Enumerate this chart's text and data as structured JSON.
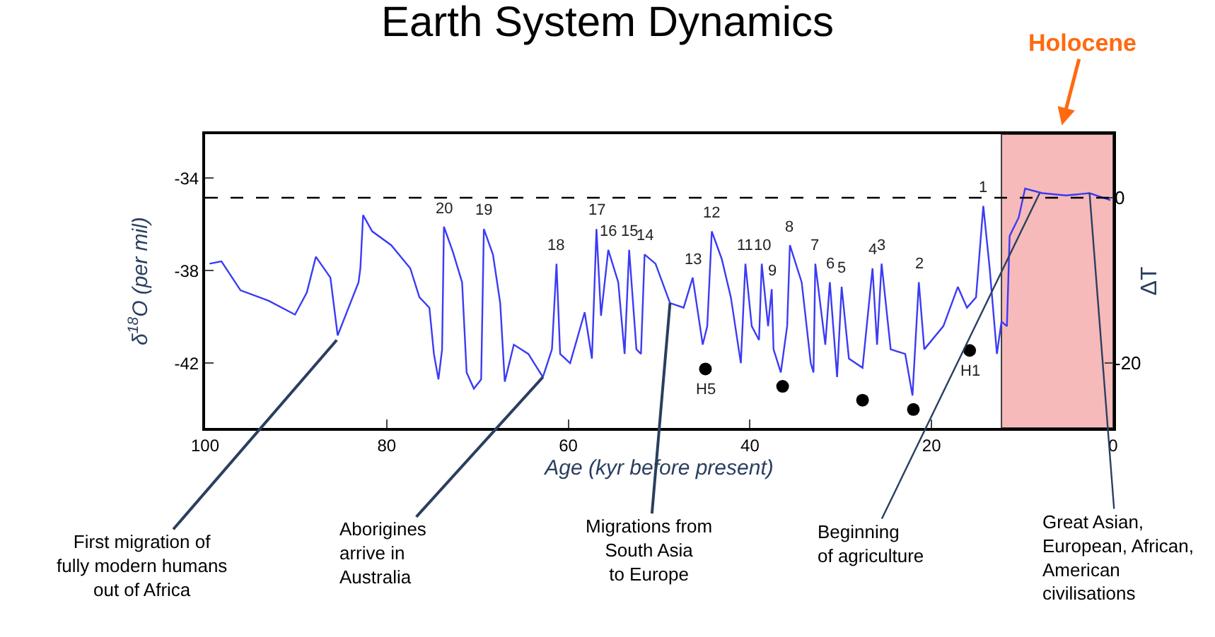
{
  "chart_data": {
    "type": "line",
    "title": "Earth System Dynamics",
    "xlabel": "Age (kyr before present)",
    "ylabel": "δ$^{18}$O (per mil)",
    "y2label": "ΔT",
    "xlim": [
      100,
      0
    ],
    "xticks": [
      100,
      80,
      60,
      40,
      20,
      0
    ],
    "ylim": [
      -44.8,
      -32.1
    ],
    "yticks": [
      -34,
      -38,
      -42
    ],
    "y2lim": [
      -27.9,
      7.7
    ],
    "y2ticks": [
      0,
      -20
    ],
    "grid": false,
    "legend": false,
    "series": [
      {
        "color": "#3b3bf5",
        "marker": "none",
        "x": [
          99.5,
          98.2,
          96.1,
          93,
          90.1,
          88.8,
          87.8,
          86.2,
          85.4,
          84.2,
          83.1,
          82.9,
          82.6,
          81.6,
          79.5,
          77.4,
          76.4,
          75.3,
          74.8,
          74.3,
          73.9,
          73.7,
          72.7,
          71.7,
          71.2,
          70.4,
          69.6,
          69.3,
          68.3,
          67.5,
          67.0,
          66.0,
          64.4,
          62.8,
          61.8,
          61.3,
          60.9,
          59.8,
          58.2,
          57.4,
          56.9,
          56.4,
          55.6,
          54.5,
          53.8,
          53.3,
          52.5,
          52.0,
          51.6,
          50.4,
          48.8,
          47.3,
          46.3,
          45.2,
          44.7,
          44.2,
          43.1,
          42.1,
          41.0,
          40.5,
          39.8,
          39.0,
          38.7,
          38.0,
          37.6,
          37.4,
          36.6,
          35.9,
          35.6,
          34.3,
          33.3,
          33.0,
          32.8,
          31.7,
          31.2,
          30.4,
          29.9,
          29.1,
          27.6,
          26.5,
          26.0,
          25.5,
          24.5,
          22.9,
          22.1,
          21.4,
          20.8,
          18.7,
          17.1,
          16.1,
          15.1,
          14.3,
          13.6,
          12.8,
          12.3,
          11.7,
          11.4,
          10.4,
          9.7,
          7.8,
          5.2,
          2.6,
          0.3
        ],
        "values": [
          -37.7,
          -37.6,
          -38.85,
          -39.3,
          -39.9,
          -38.95,
          -37.4,
          -38.3,
          -40.8,
          -39.6,
          -38.5,
          -37.9,
          -35.6,
          -36.3,
          -36.9,
          -37.9,
          -39.15,
          -39.6,
          -41.6,
          -42.7,
          -41.4,
          -36.1,
          -37.2,
          -38.5,
          -42.4,
          -43.1,
          -42.7,
          -36.2,
          -37.3,
          -39.4,
          -42.8,
          -41.2,
          -41.6,
          -42.6,
          -41.4,
          -37.7,
          -41.6,
          -42.0,
          -39.8,
          -41.8,
          -36.2,
          -39.95,
          -37.1,
          -38.5,
          -41.6,
          -37.1,
          -41.4,
          -41.6,
          -37.3,
          -37.7,
          -39.4,
          -39.6,
          -38.3,
          -41.2,
          -40.4,
          -36.3,
          -37.5,
          -39.15,
          -42.0,
          -37.7,
          -40.4,
          -41.0,
          -37.7,
          -40.4,
          -38.8,
          -41.4,
          -42.4,
          -40.4,
          -36.9,
          -38.5,
          -42.0,
          -42.4,
          -37.7,
          -41.2,
          -38.5,
          -42.6,
          -38.7,
          -41.8,
          -42.2,
          -37.9,
          -41.2,
          -37.7,
          -41.4,
          -41.6,
          -43.4,
          -38.5,
          -41.4,
          -40.4,
          -38.7,
          -39.6,
          -39.15,
          -35.2,
          -37.9,
          -41.6,
          -40.2,
          -40.4,
          -36.5,
          -35.7,
          -34.45,
          -34.65,
          -34.75,
          -34.65,
          -34.95
        ]
      },
      {
        "type": "scatter",
        "color": "#000000",
        "marker": "circle",
        "x": [
          44.9,
          36.4,
          27.6,
          22.0,
          15.8
        ],
        "values": [
          -42.25,
          -43.0,
          -43.6,
          -44.0,
          -41.45
        ]
      }
    ],
    "ref_lines": [
      {
        "axis": "y2",
        "value": 0,
        "color": "#000000",
        "line_style": "dashed"
      }
    ],
    "bands": [
      {
        "axis": "x",
        "from": 12.3,
        "to": 0,
        "label": "Holocene",
        "color": "#f4a3a3"
      }
    ],
    "annotations": [
      {
        "text": "20",
        "x": 73.7,
        "y": -36.1
      },
      {
        "text": "19",
        "x": 69.3,
        "y": -36.2
      },
      {
        "text": "18",
        "x": 61.3,
        "y": -37.7
      },
      {
        "text": "17",
        "x": 56.9,
        "y": -36.2
      },
      {
        "text": "16",
        "x": 55.6,
        "y": -37.1
      },
      {
        "text": "15",
        "x": 53.3,
        "y": -37.1
      },
      {
        "text": "14",
        "x": 51.6,
        "y": -37.3
      },
      {
        "text": "13",
        "x": 46.3,
        "y": -38.3
      },
      {
        "text": "12",
        "x": 44.2,
        "y": -36.3
      },
      {
        "text": "11",
        "x": 40.5,
        "y": -37.7
      },
      {
        "text": "10",
        "x": 38.7,
        "y": -37.7
      },
      {
        "text": "9",
        "x": 37.6,
        "y": -38.8
      },
      {
        "text": "8",
        "x": 35.6,
        "y": -36.9
      },
      {
        "text": "7",
        "x": 32.8,
        "y": -37.7
      },
      {
        "text": "6",
        "x": 31.2,
        "y": -38.5
      },
      {
        "text": "5",
        "x": 29.9,
        "y": -38.7
      },
      {
        "text": "4",
        "x": 26.5,
        "y": -37.9
      },
      {
        "text": "3",
        "x": 25.5,
        "y": -37.7
      },
      {
        "text": "2",
        "x": 21.4,
        "y": -38.5
      },
      {
        "text": "1",
        "x": 14.3,
        "y": -35.2
      },
      {
        "text": "H5",
        "x": 44.9,
        "y": -42.25
      },
      {
        "text": "H1",
        "x": 15.8,
        "y": -41.45
      },
      {
        "text": "First migration of\nfully modern humans\nout of Africa",
        "x": 85.5,
        "y": -41.0
      },
      {
        "text": "Aborigines\narrive in\nAustralia",
        "x": 62.8,
        "y": -42.6
      },
      {
        "text": "Migrations from\nSouth Asia\nto Europe",
        "x": 48.8,
        "y": -39.4
      },
      {
        "text": "Beginning\nof agriculture",
        "x": 8.1,
        "y": -34.65
      },
      {
        "text": "Great Asian,\nEuropean, African,\nAmerican\ncivilisations",
        "x": 2.6,
        "y": -34.65
      }
    ]
  }
}
